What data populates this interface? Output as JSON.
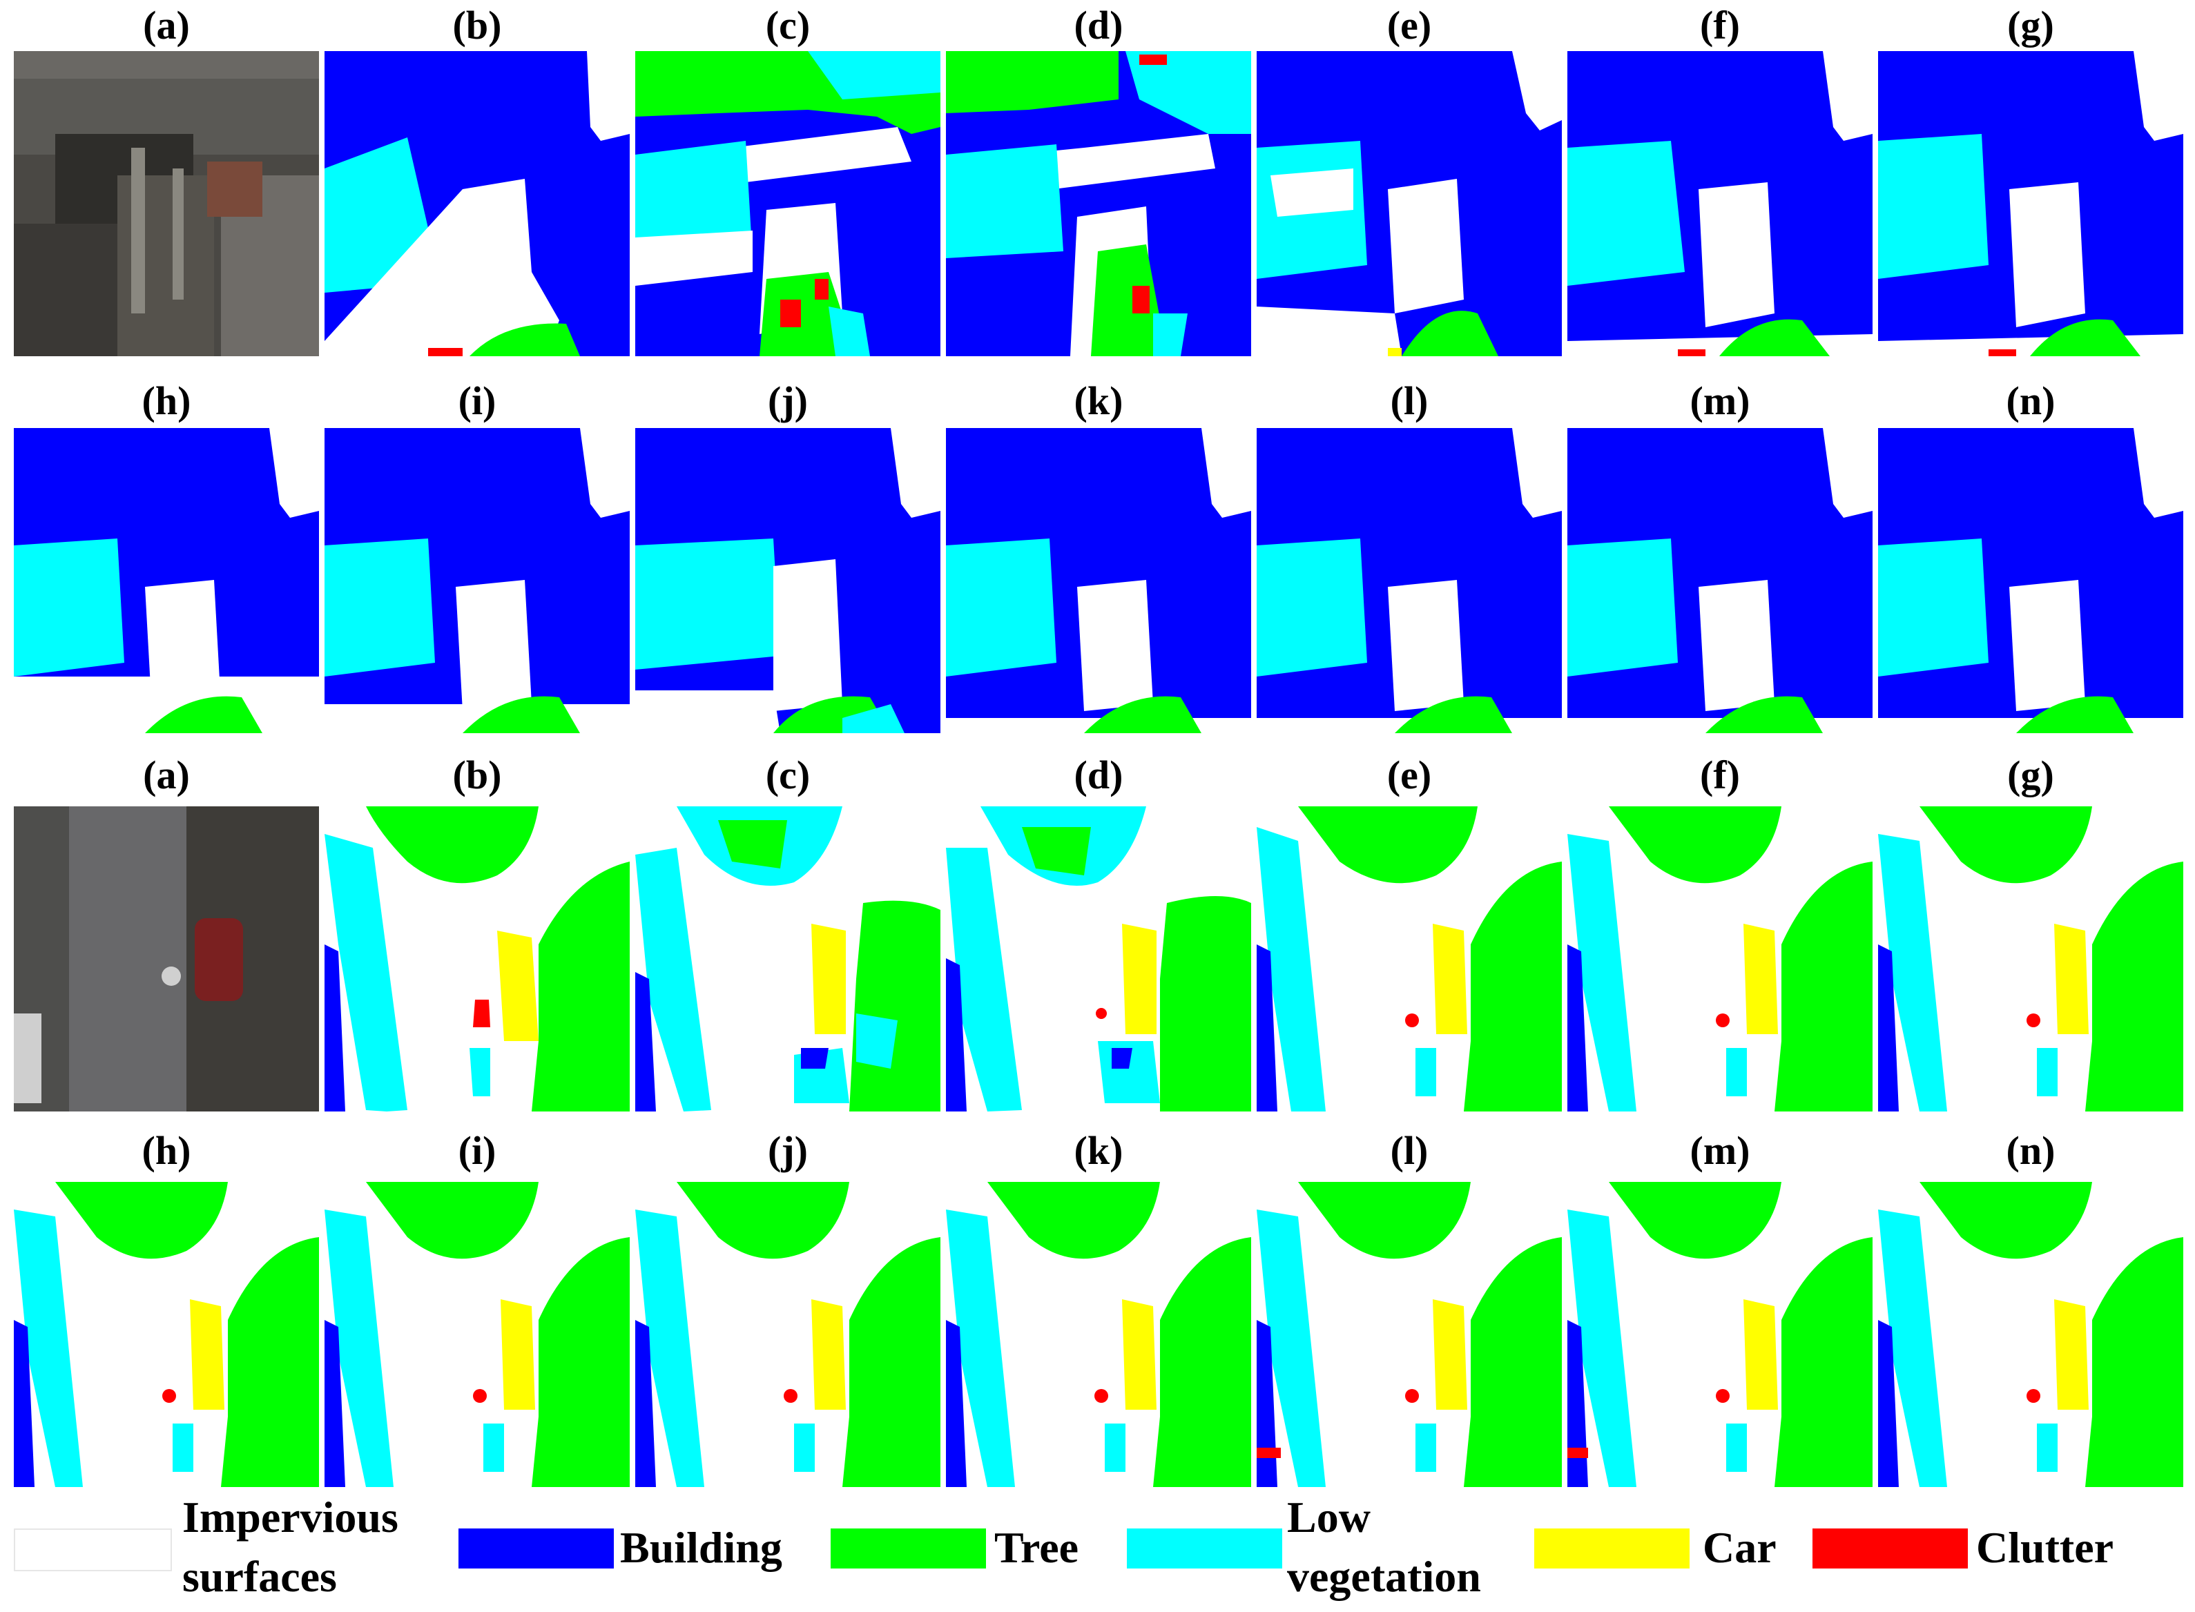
{
  "colors": {
    "impervious": "#ffffff",
    "building": "#0000ff",
    "tree": "#00ff00",
    "low_vegetation": "#00ffff",
    "car": "#ffff00",
    "clutter": "#ff0000",
    "photo_dark": "#3a3937",
    "photo_mid": "#6b6a66"
  },
  "labels_row1": [
    "(a)",
    "(b)",
    "(c)",
    "(d)",
    "(e)",
    "(f)",
    "(g)"
  ],
  "labels_row2": [
    "(h)",
    "(i)",
    "(j)",
    "(k)",
    "(l)",
    "(m)",
    "(n)"
  ],
  "labels_row3": [
    "(a)",
    "(b)",
    "(c)",
    "(d)",
    "(e)",
    "(f)",
    "(g)"
  ],
  "labels_row4": [
    "(h)",
    "(i)",
    "(j)",
    "(k)",
    "(l)",
    "(m)",
    "(n)"
  ],
  "legend": {
    "impervious": "Impervious surfaces",
    "impervious_line1": "Impervious",
    "impervious_line2": "surfaces",
    "building": "Building",
    "tree": "Tree",
    "low_vegetation": "Low vegetation",
    "low_vegetation_line1": "Low",
    "low_vegetation_line2": "vegetation",
    "car": "Car",
    "clutter": "Clutter"
  }
}
